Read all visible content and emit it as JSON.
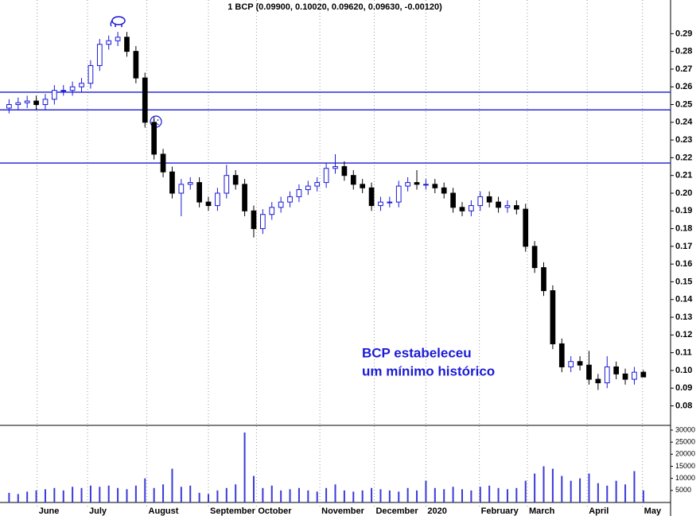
{
  "chart_data": [
    {
      "type": "candlestick",
      "title": "1 BCP (0.09900, 0.10020, 0.09620, 0.09630, -0.00120)",
      "annotation": [
        "BCP estabeleceu",
        "um mínimo histórico"
      ],
      "open": [
        0.248,
        0.25,
        0.251,
        0.252,
        0.25,
        0.253,
        0.258,
        0.258,
        0.26,
        0.262,
        0.272,
        0.284,
        0.286,
        0.288,
        0.28,
        0.265,
        0.24,
        0.222,
        0.212,
        0.2,
        0.205,
        0.206,
        0.195,
        0.193,
        0.2,
        0.21,
        0.205,
        0.19,
        0.18,
        0.188,
        0.192,
        0.195,
        0.198,
        0.202,
        0.204,
        0.206,
        0.214,
        0.215,
        0.21,
        0.205,
        0.203,
        0.193,
        0.195,
        0.195,
        0.204,
        0.206,
        0.205,
        0.205,
        0.203,
        0.2,
        0.192,
        0.19,
        0.193,
        0.198,
        0.195,
        0.192,
        0.193,
        0.191,
        0.17,
        0.158,
        0.145,
        0.115,
        0.102,
        0.105,
        0.103,
        0.095,
        0.093,
        0.102,
        0.098,
        0.095,
        0.099
      ],
      "high": [
        0.253,
        0.254,
        0.255,
        0.255,
        0.256,
        0.261,
        0.261,
        0.263,
        0.265,
        0.275,
        0.287,
        0.289,
        0.291,
        0.291,
        0.283,
        0.268,
        0.243,
        0.225,
        0.215,
        0.208,
        0.209,
        0.209,
        0.198,
        0.203,
        0.216,
        0.213,
        0.208,
        0.193,
        0.191,
        0.195,
        0.198,
        0.201,
        0.205,
        0.207,
        0.209,
        0.217,
        0.222,
        0.218,
        0.213,
        0.208,
        0.206,
        0.198,
        0.198,
        0.207,
        0.209,
        0.213,
        0.208,
        0.208,
        0.206,
        0.203,
        0.195,
        0.196,
        0.201,
        0.201,
        0.198,
        0.196,
        0.196,
        0.194,
        0.173,
        0.161,
        0.148,
        0.118,
        0.108,
        0.108,
        0.111,
        0.098,
        0.108,
        0.105,
        0.101,
        0.102,
        0.1002
      ],
      "low": [
        0.245,
        0.247,
        0.248,
        0.247,
        0.247,
        0.25,
        0.255,
        0.255,
        0.257,
        0.259,
        0.269,
        0.281,
        0.283,
        0.277,
        0.262,
        0.237,
        0.219,
        0.209,
        0.197,
        0.187,
        0.202,
        0.192,
        0.19,
        0.19,
        0.197,
        0.202,
        0.187,
        0.175,
        0.177,
        0.185,
        0.189,
        0.192,
        0.195,
        0.199,
        0.201,
        0.203,
        0.211,
        0.207,
        0.202,
        0.2,
        0.19,
        0.19,
        0.192,
        0.192,
        0.201,
        0.202,
        0.202,
        0.2,
        0.197,
        0.189,
        0.187,
        0.187,
        0.19,
        0.192,
        0.189,
        0.189,
        0.188,
        0.167,
        0.155,
        0.142,
        0.112,
        0.099,
        0.099,
        0.1,
        0.092,
        0.089,
        0.09,
        0.095,
        0.092,
        0.092,
        0.0962
      ],
      "close": [
        0.25,
        0.251,
        0.252,
        0.25,
        0.253,
        0.258,
        0.258,
        0.26,
        0.262,
        0.272,
        0.284,
        0.286,
        0.288,
        0.28,
        0.265,
        0.24,
        0.222,
        0.212,
        0.2,
        0.205,
        0.206,
        0.195,
        0.193,
        0.2,
        0.21,
        0.205,
        0.19,
        0.18,
        0.188,
        0.192,
        0.195,
        0.198,
        0.202,
        0.204,
        0.206,
        0.214,
        0.215,
        0.21,
        0.205,
        0.203,
        0.193,
        0.195,
        0.195,
        0.204,
        0.206,
        0.205,
        0.205,
        0.203,
        0.2,
        0.192,
        0.19,
        0.193,
        0.198,
        0.195,
        0.192,
        0.193,
        0.191,
        0.17,
        0.158,
        0.145,
        0.115,
        0.102,
        0.105,
        0.103,
        0.095,
        0.093,
        0.102,
        0.098,
        0.095,
        0.099,
        0.0963
      ],
      "color_up": "#ffffff",
      "color_down": "#000000",
      "outline": "#1a1ad6",
      "xlim": [
        -1,
        73
      ],
      "xticks": [
        {
          "value": 3.1,
          "label": "June"
        },
        {
          "value": 8.66,
          "label": "July"
        },
        {
          "value": 15.2,
          "label": "August"
        },
        {
          "value": 22,
          "label": "September"
        },
        {
          "value": 27.3,
          "label": "October"
        },
        {
          "value": 34.3,
          "label": "November"
        },
        {
          "value": 40.3,
          "label": "December"
        },
        {
          "value": 46,
          "label": "2020"
        },
        {
          "value": 51.9,
          "label": "February"
        },
        {
          "value": 57.2,
          "label": "March"
        },
        {
          "value": 63.8,
          "label": "April"
        },
        {
          "value": 69.9,
          "label": "May"
        }
      ],
      "ylim": [
        0.069,
        0.309
      ],
      "yticks": [
        0.08,
        0.09,
        {
          "value": 0.1,
          "label": "0.10"
        },
        0.11,
        0.12,
        0.13,
        0.14,
        0.15,
        0.16,
        0.17,
        0.18,
        0.19,
        {
          "value": 0.2,
          "label": "0.20"
        },
        0.21,
        0.22,
        0.23,
        0.24,
        0.25,
        0.26,
        0.27,
        0.28,
        0.29
      ],
      "hlines": [
        0.257,
        0.247,
        0.217
      ],
      "hline_color": "#1a1ad6"
    },
    {
      "type": "bar",
      "values": [
        4000,
        3500,
        4500,
        5000,
        5500,
        6000,
        5000,
        6500,
        6000,
        7000,
        6500,
        7000,
        6000,
        5500,
        7000,
        10000,
        6000,
        7500,
        14000,
        6500,
        7000,
        4000,
        3500,
        5000,
        6000,
        7500,
        29000,
        11000,
        6000,
        7000,
        5000,
        5500,
        6000,
        5000,
        4500,
        6000,
        7500,
        5000,
        4500,
        5000,
        6000,
        5500,
        5000,
        4500,
        6000,
        5000,
        9000,
        6000,
        5500,
        6500,
        5500,
        5000,
        6500,
        7000,
        6000,
        5500,
        6000,
        9000,
        12000,
        15000,
        14000,
        11000,
        9000,
        10000,
        12000,
        8000,
        7000,
        9000,
        7500,
        13000,
        5000
      ],
      "color": "#3a3ad8",
      "xlim": [
        -1,
        73
      ],
      "ylim": [
        0,
        31300
      ],
      "yticks": [
        5000,
        10000,
        15000,
        20000,
        25000,
        30000
      ]
    }
  ]
}
